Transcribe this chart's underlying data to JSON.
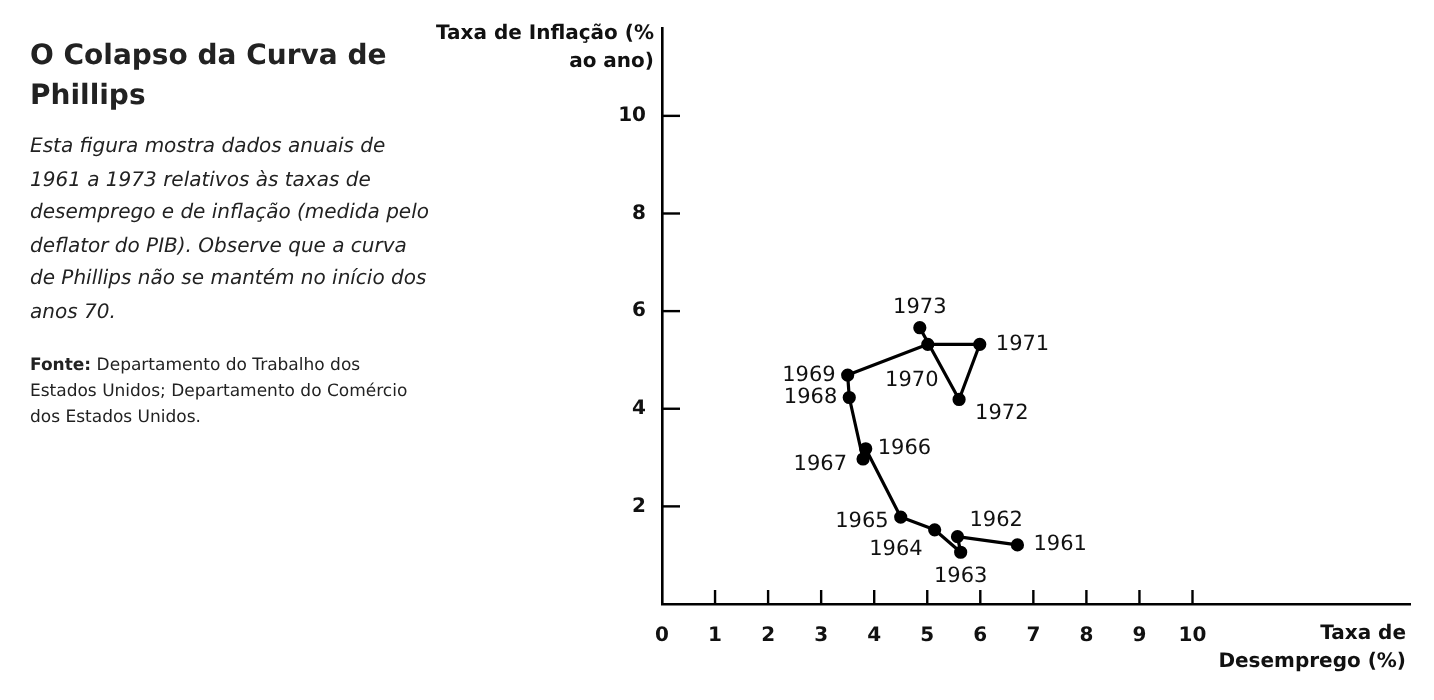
{
  "chart_data": {
    "type": "line",
    "title": "O Colapso da Curva de Phillips",
    "subtitle": "Esta figura mostra dados anuais de 1961 a 1973 relativos às taxas de desemprego e de inflação (medida pelo deflator do PIB). Observe que a curva de Phillips não se mantém no início dos anos 70.",
    "xlabel": "Taxa de Desemprego (%)",
    "ylabel": "Taxa de Inflação (% ao ano)",
    "series": [
      {
        "color": "#000000",
        "x": [
          6.7,
          5.57,
          5.63,
          5.14,
          4.5,
          3.84,
          3.79,
          3.53,
          3.5,
          5.01,
          5.99,
          5.6,
          4.86
        ],
        "values": [
          1.21,
          1.38,
          1.06,
          1.52,
          1.78,
          3.18,
          2.97,
          4.23,
          4.69,
          5.32,
          5.32,
          4.19,
          5.66
        ]
      }
    ],
    "xlim": [
      0,
      14.1
    ],
    "xticks": [
      0,
      1,
      2,
      3,
      4,
      5,
      6,
      7,
      8,
      9,
      10
    ],
    "ylim": [
      0,
      11.8
    ],
    "yticks": [
      2,
      4,
      6,
      8,
      10
    ],
    "grid": false,
    "legend": false,
    "marker": "circle",
    "line_style": "solid",
    "annotations": [
      {
        "text": "1961",
        "x": 6.7,
        "y": 1.21
      },
      {
        "text": "1962",
        "x": 5.57,
        "y": 1.38
      },
      {
        "text": "1963",
        "x": 5.63,
        "y": 1.06
      },
      {
        "text": "1964",
        "x": 5.14,
        "y": 1.52
      },
      {
        "text": "1965",
        "x": 4.5,
        "y": 1.78
      },
      {
        "text": "1966",
        "x": 3.84,
        "y": 3.18
      },
      {
        "text": "1967",
        "x": 3.79,
        "y": 2.97
      },
      {
        "text": "1968",
        "x": 3.53,
        "y": 4.23
      },
      {
        "text": "1969",
        "x": 3.5,
        "y": 4.69
      },
      {
        "text": "1970",
        "x": 5.01,
        "y": 5.32
      },
      {
        "text": "1971",
        "x": 5.99,
        "y": 5.32
      },
      {
        "text": "1972",
        "x": 5.6,
        "y": 4.19
      },
      {
        "text": "1973",
        "x": 4.86,
        "y": 5.66
      },
      "Fonte: Departamento do Trabalho dos Estados Unidos; Departamento do Comércio dos Estados Unidos."
    ]
  }
}
